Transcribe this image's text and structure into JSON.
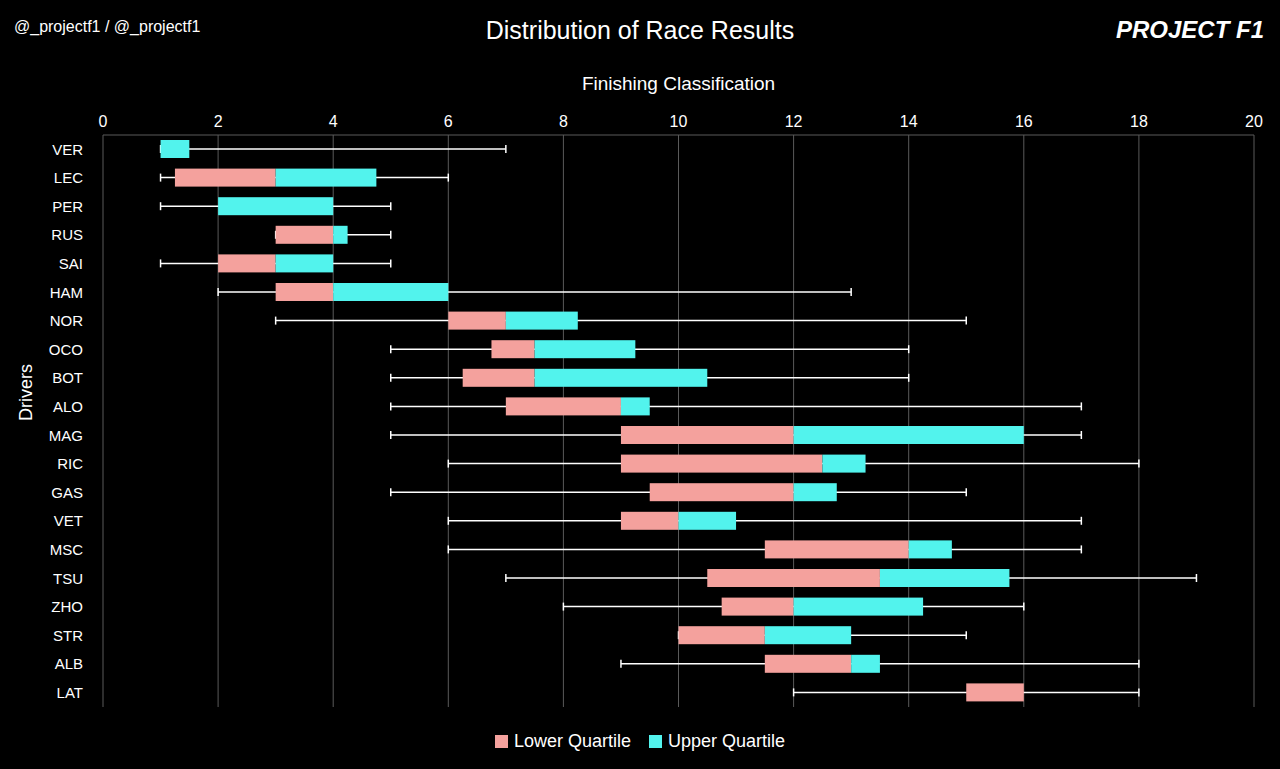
{
  "chart_data": {
    "type": "boxplot",
    "orientation": "horizontal",
    "title": "Distribution of Race Results",
    "x_label": "Finishing Classification",
    "y_label": "Drivers",
    "annotations": [
      "@_projectf1 / @_projectf1",
      "PROJECT F1"
    ],
    "categories": [
      "VER",
      "LEC",
      "PER",
      "RUS",
      "SAI",
      "HAM",
      "NOR",
      "OCO",
      "BOT",
      "ALO",
      "MAG",
      "RIC",
      "GAS",
      "VET",
      "MSC",
      "TSU",
      "ZHO",
      "STR",
      "ALB",
      "LAT"
    ],
    "min": [
      1,
      1,
      1,
      3,
      1,
      2,
      3,
      5,
      5,
      5,
      5,
      6,
      5,
      6,
      6,
      7,
      8,
      10,
      9,
      12
    ],
    "q1": [
      1,
      1.25,
      2,
      3,
      2,
      3,
      6,
      6.75,
      6.25,
      7,
      9,
      9,
      9.5,
      9,
      11.5,
      10.5,
      10.75,
      10,
      11.5,
      15
    ],
    "median": [
      1,
      3,
      2,
      4,
      3,
      4,
      7,
      7.5,
      7.5,
      9,
      12,
      12.5,
      12,
      10,
      14,
      13.5,
      12,
      11.5,
      13,
      16
    ],
    "q3": [
      1.5,
      4.75,
      4,
      4.25,
      4,
      6,
      8.25,
      9.25,
      10.5,
      9.5,
      16,
      13.25,
      12.75,
      11,
      14.75,
      15.75,
      14.25,
      13,
      13.5,
      16
    ],
    "max": [
      7,
      6,
      5,
      5,
      5,
      13,
      15,
      14,
      14,
      17,
      17,
      18,
      15,
      17,
      17,
      19,
      16,
      15,
      18,
      18
    ],
    "series": [
      {
        "name": "Lower Quartile",
        "color": "#f4a19d"
      },
      {
        "name": "Upper Quartile",
        "color": "#52f3ed"
      }
    ],
    "xlim": [
      0,
      20
    ],
    "xticks": [
      0,
      2,
      4,
      6,
      8,
      10,
      12,
      14,
      16,
      18,
      20
    ],
    "grid": true,
    "legend": "bottom"
  }
}
